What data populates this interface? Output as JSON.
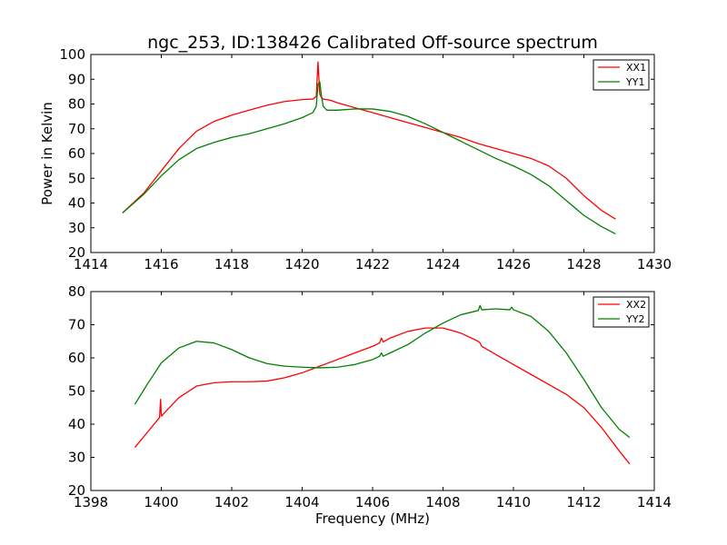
{
  "title": "ngc_253, ID:138426 Calibrated Off-source spectrum",
  "chart_data": [
    {
      "type": "line",
      "title": "ngc_253, ID:138426 Calibrated Off-source spectrum",
      "xlabel": "",
      "ylabel": "Power in Kelvin",
      "xlim": [
        1414,
        1430
      ],
      "ylim": [
        20,
        100
      ],
      "xticks": [
        1414,
        1416,
        1418,
        1420,
        1422,
        1424,
        1426,
        1428,
        1430
      ],
      "yticks": [
        20,
        30,
        40,
        50,
        60,
        70,
        80,
        90,
        100
      ],
      "grid": false,
      "legend_position": "top-right",
      "series": [
        {
          "name": "XX1",
          "color": "#ff0000",
          "x": [
            1414.9,
            1415.5,
            1416.0,
            1416.5,
            1417.0,
            1417.5,
            1418.0,
            1418.5,
            1419.0,
            1419.5,
            1420.0,
            1420.3,
            1420.4,
            1420.45,
            1420.5,
            1420.55,
            1420.6,
            1420.8,
            1421.0,
            1421.5,
            1422.0,
            1422.5,
            1423.0,
            1423.5,
            1424.0,
            1424.5,
            1425.0,
            1425.5,
            1426.0,
            1426.5,
            1427.0,
            1427.5,
            1428.0,
            1428.5,
            1428.9
          ],
          "y": [
            36,
            44,
            53,
            62,
            69,
            73,
            75.5,
            77.5,
            79.5,
            81,
            81.8,
            82,
            83,
            97,
            84,
            82.5,
            82,
            81.5,
            80.5,
            78.5,
            76.5,
            74.5,
            72.5,
            70.5,
            68.5,
            66.5,
            64,
            62,
            60,
            58,
            55,
            50,
            43,
            37,
            33.5
          ]
        },
        {
          "name": "YY1",
          "color": "#008000",
          "x": [
            1414.9,
            1415.5,
            1416.0,
            1416.5,
            1417.0,
            1417.5,
            1418.0,
            1418.5,
            1419.0,
            1419.5,
            1420.0,
            1420.3,
            1420.4,
            1420.45,
            1420.5,
            1420.55,
            1420.6,
            1420.7,
            1421.0,
            1421.5,
            1422.0,
            1422.5,
            1423.0,
            1423.5,
            1424.0,
            1424.5,
            1425.0,
            1425.5,
            1426.0,
            1426.5,
            1427.0,
            1427.5,
            1428.0,
            1428.5,
            1428.9
          ],
          "y": [
            36,
            43.5,
            51,
            57.5,
            62,
            64.5,
            66.5,
            68,
            70,
            72,
            74.5,
            76.5,
            79,
            88,
            89,
            83,
            79,
            77.5,
            77.5,
            78,
            78,
            77,
            75,
            72,
            68.5,
            65,
            61.5,
            58,
            55,
            51.5,
            47,
            41,
            35,
            30.5,
            27.5
          ]
        }
      ]
    },
    {
      "type": "line",
      "title": "",
      "xlabel": "Frequency (MHz)",
      "ylabel": "",
      "xlim": [
        1398,
        1414
      ],
      "ylim": [
        20,
        80
      ],
      "xticks": [
        1398,
        1400,
        1402,
        1404,
        1406,
        1408,
        1410,
        1412,
        1414
      ],
      "yticks": [
        20,
        30,
        40,
        50,
        60,
        70,
        80
      ],
      "grid": false,
      "legend_position": "top-right",
      "series": [
        {
          "name": "XX2",
          "color": "#ff0000",
          "x": [
            1399.25,
            1399.6,
            1399.95,
            1399.98,
            1400.0,
            1400.02,
            1400.05,
            1400.5,
            1401.0,
            1401.5,
            1402.0,
            1402.5,
            1403.0,
            1403.5,
            1404.0,
            1404.5,
            1405.0,
            1405.5,
            1406.0,
            1406.2,
            1406.25,
            1406.3,
            1406.5,
            1407.0,
            1407.5,
            1408.0,
            1408.5,
            1409.0,
            1409.05,
            1409.1,
            1409.5,
            1410.0,
            1410.5,
            1411.0,
            1411.5,
            1412.0,
            1412.5,
            1413.0,
            1413.3
          ],
          "y": [
            33,
            37.5,
            42,
            47.5,
            42.5,
            42.5,
            43,
            48,
            51.5,
            52.5,
            52.8,
            52.8,
            53,
            54,
            55.5,
            57.5,
            59.5,
            61.5,
            63.5,
            64.5,
            66,
            64.8,
            66,
            68,
            69,
            69,
            67.5,
            65,
            64.5,
            63.5,
            61,
            58,
            55,
            52,
            49,
            45,
            39,
            32,
            28
          ]
        },
        {
          "name": "YY2",
          "color": "#008000",
          "x": [
            1399.25,
            1399.6,
            1400.0,
            1400.5,
            1401.0,
            1401.5,
            1402.0,
            1402.5,
            1403.0,
            1403.5,
            1404.0,
            1404.5,
            1405.0,
            1405.5,
            1406.0,
            1406.2,
            1406.25,
            1406.3,
            1406.5,
            1407.0,
            1407.5,
            1408.0,
            1408.5,
            1409.0,
            1409.05,
            1409.1,
            1409.5,
            1409.9,
            1409.95,
            1410.0,
            1410.5,
            1411.0,
            1411.5,
            1412.0,
            1412.5,
            1413.0,
            1413.3
          ],
          "y": [
            46,
            52,
            58.5,
            63,
            65,
            64.5,
            62.5,
            60,
            58.3,
            57.5,
            57.2,
            57,
            57.2,
            58,
            59.5,
            60.5,
            61.5,
            60.5,
            61.5,
            64,
            67.5,
            70.5,
            73,
            74.3,
            75.8,
            74.5,
            74.8,
            74.5,
            75.3,
            74.5,
            72.5,
            68,
            61.5,
            53.5,
            45,
            38.5,
            36
          ]
        }
      ]
    }
  ]
}
